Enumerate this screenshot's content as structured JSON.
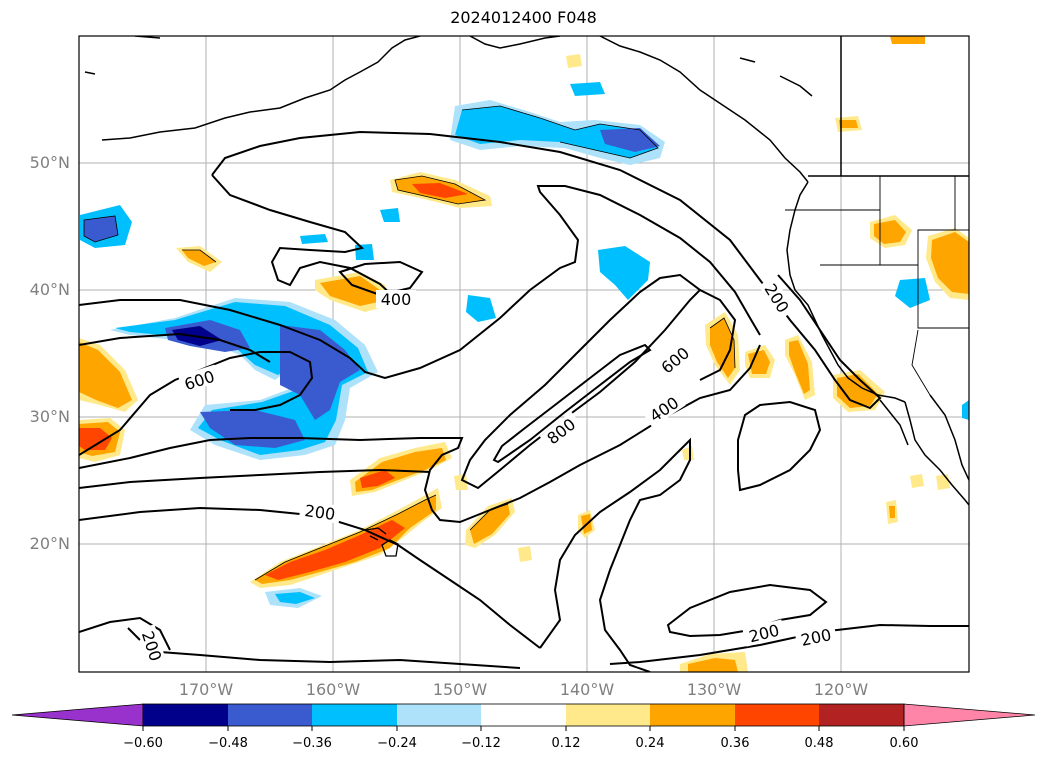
{
  "title": "2024012400 F048",
  "map": {
    "lat_labels": [
      "50°N",
      "40°N",
      "30°N",
      "20°N"
    ],
    "lon_labels": [
      "170°W",
      "160°W",
      "150°W",
      "140°W",
      "130°W",
      "120°W"
    ],
    "contour_labels": [
      "400",
      "600",
      "200",
      "800",
      "600",
      "400",
      "200",
      "200",
      "200",
      "200"
    ]
  },
  "colorbar": {
    "ticks": [
      "−0.60",
      "−0.48",
      "−0.36",
      "−0.24",
      "−0.12",
      "0.12",
      "0.24",
      "0.36",
      "0.48",
      "0.60"
    ],
    "colors": [
      "#9932cc",
      "#00008b",
      "#3a5bd0",
      "#00bfff",
      "#aee1fa",
      "#ffffff",
      "#ffe98a",
      "#ffa500",
      "#ff4500",
      "#b22222",
      "#ff85a8"
    ]
  }
}
